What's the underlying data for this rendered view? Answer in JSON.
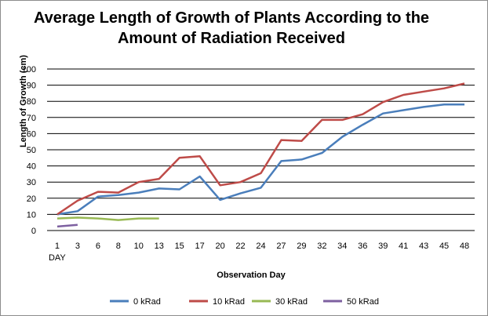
{
  "chart_data": {
    "type": "line",
    "title_line1": "Average Length of Growth of Plants According to the",
    "title_line2": "Amount of Radiation Received",
    "xlabel": "Observation Day",
    "ylabel": "Length of Growth (cm)",
    "x_first_sublabel": "DAY",
    "x_ticks": [
      1,
      3,
      6,
      8,
      10,
      13,
      15,
      17,
      20,
      22,
      24,
      27,
      29,
      32,
      34,
      36,
      39,
      41,
      43,
      45,
      48
    ],
    "ylim": [
      0,
      100
    ],
    "y_ticks": [
      0,
      10,
      20,
      30,
      40,
      50,
      60,
      70,
      80,
      90,
      100
    ],
    "grid": "horizontal",
    "legend_position": "bottom",
    "series": [
      {
        "name": "0 kRad",
        "color": "#4a7ebb",
        "values": [
          10,
          12,
          21,
          22,
          23.5,
          26,
          25.5,
          33.5,
          19,
          23,
          26.5,
          43,
          44,
          48,
          58,
          65.5,
          72.5,
          74.5,
          76.5,
          78,
          78
        ]
      },
      {
        "name": "10 kRad",
        "color": "#be4b48",
        "values": [
          10,
          18.5,
          24,
          23.5,
          30,
          32,
          45,
          46,
          28,
          30,
          35.5,
          56,
          55.5,
          68.5,
          68.5,
          72,
          79.5,
          84,
          86,
          88,
          91
        ]
      },
      {
        "name": "30 kRad",
        "color": "#98b954",
        "values": [
          7.5,
          8,
          7.5,
          6.5,
          7.5,
          7.5,
          null,
          null,
          null,
          null,
          null,
          null,
          null,
          null,
          null,
          null,
          null,
          null,
          null,
          null,
          null
        ]
      },
      {
        "name": "50 kRad",
        "color": "#7d60a0",
        "values": [
          2.5,
          3.5,
          null,
          null,
          null,
          null,
          null,
          null,
          null,
          null,
          null,
          null,
          null,
          null,
          null,
          null,
          null,
          null,
          null,
          null,
          null
        ]
      }
    ]
  }
}
